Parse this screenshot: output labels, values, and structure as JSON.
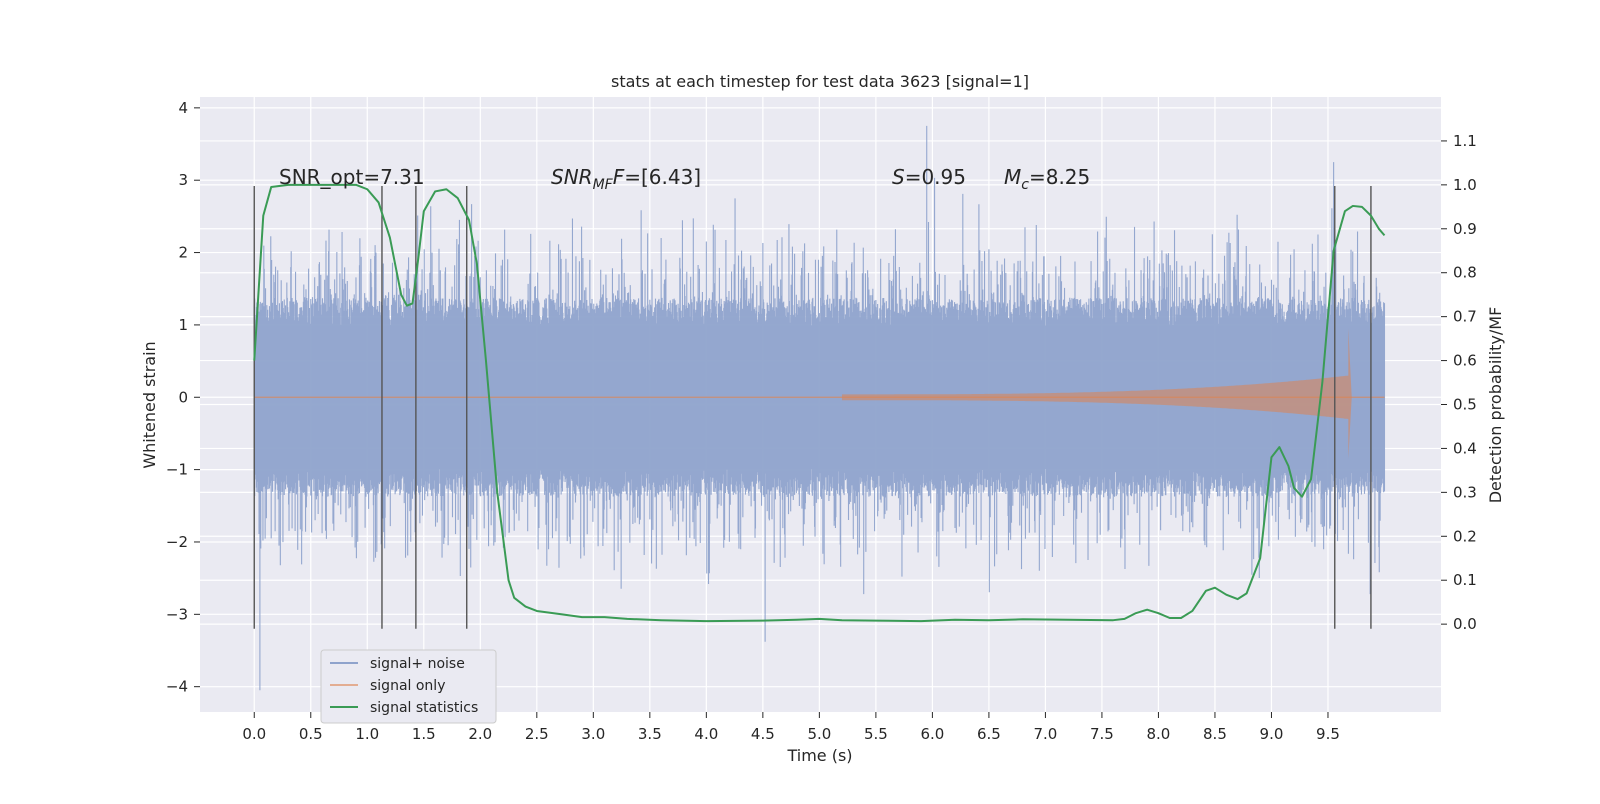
{
  "chart_data": {
    "type": "line",
    "title": "stats at each timestep for test data 3623 [signal=1]",
    "xlabel": "Time (s)",
    "ylabel_left": "Whitened strain",
    "ylabel_right": "Detection probability/MF",
    "xlim": [
      -0.48,
      10.5
    ],
    "ylim_left": [
      -4.35,
      4.15
    ],
    "ylim_right": [
      -0.2,
      1.2
    ],
    "grid": true,
    "legend_position": "lower-left",
    "x_ticks": [
      "0.0",
      "0.5",
      "1.0",
      "1.5",
      "2.0",
      "2.5",
      "3.0",
      "3.5",
      "4.0",
      "4.5",
      "5.0",
      "5.5",
      "6.0",
      "6.5",
      "7.0",
      "7.5",
      "8.0",
      "8.5",
      "9.0",
      "9.5"
    ],
    "y_left_ticks": [
      "4",
      "3",
      "2",
      "1",
      "0",
      "−1",
      "−2",
      "−3",
      "−4"
    ],
    "y_right_ticks": [
      "1.1",
      "1.0",
      "0.9",
      "0.8",
      "0.7",
      "0.6",
      "0.5",
      "0.4",
      "0.3",
      "0.2",
      "0.1",
      "0.0"
    ],
    "annotations": {
      "snr_opt": "SNR_opt=7.31",
      "snr_mf_main": "SNR",
      "snr_mf_sub": "MF",
      "snr_mf_val": "=[6.43]",
      "s_sym": "S",
      "s_val": "=0.95",
      "mc_main": "M",
      "mc_sub": "c",
      "mc_val": "=8.25"
    },
    "series": [
      {
        "name": "signal+ noise",
        "color": "#8fa3cc",
        "x_range": [
          0.0,
          10.0
        ],
        "noise_band": {
          "core_amplitude": 1.1,
          "spike_max": 3.75,
          "spike_min": -4.05
        },
        "extremes": [
          {
            "x": 0.05,
            "y": -4.05
          },
          {
            "x": 4.52,
            "y": -3.38
          },
          {
            "x": 5.95,
            "y": 3.75
          },
          {
            "x": 9.55,
            "y": 3.25
          }
        ]
      },
      {
        "name": "signal only",
        "color": "#dd8452",
        "x_range": [
          0.0,
          10.0
        ],
        "chirp": {
          "merger_time": 9.68,
          "start_time": 5.2,
          "peak_amplitude": 0.95,
          "pre_merger_amplitude": 0.3
        }
      },
      {
        "name": "signal statistics",
        "color": "#3a9b55",
        "axis": "right",
        "points": [
          [
            0.0,
            0.6
          ],
          [
            0.08,
            0.93
          ],
          [
            0.15,
            0.995
          ],
          [
            0.3,
            1.0
          ],
          [
            0.6,
            1.0
          ],
          [
            0.9,
            1.0
          ],
          [
            1.0,
            0.99
          ],
          [
            1.1,
            0.96
          ],
          [
            1.2,
            0.88
          ],
          [
            1.3,
            0.75
          ],
          [
            1.35,
            0.725
          ],
          [
            1.4,
            0.73
          ],
          [
            1.45,
            0.83
          ],
          [
            1.5,
            0.94
          ],
          [
            1.6,
            0.985
          ],
          [
            1.7,
            0.99
          ],
          [
            1.8,
            0.97
          ],
          [
            1.9,
            0.92
          ],
          [
            1.97,
            0.82
          ],
          [
            2.05,
            0.6
          ],
          [
            2.15,
            0.3
          ],
          [
            2.25,
            0.1
          ],
          [
            2.3,
            0.06
          ],
          [
            2.4,
            0.04
          ],
          [
            2.5,
            0.03
          ],
          [
            2.7,
            0.023
          ],
          [
            2.9,
            0.016
          ],
          [
            3.1,
            0.016
          ],
          [
            3.3,
            0.012
          ],
          [
            3.6,
            0.009
          ],
          [
            4.0,
            0.007
          ],
          [
            4.5,
            0.008
          ],
          [
            4.8,
            0.01
          ],
          [
            5.0,
            0.012
          ],
          [
            5.2,
            0.009
          ],
          [
            5.5,
            0.008
          ],
          [
            5.9,
            0.007
          ],
          [
            6.2,
            0.01
          ],
          [
            6.5,
            0.009
          ],
          [
            6.8,
            0.011
          ],
          [
            7.2,
            0.01
          ],
          [
            7.6,
            0.009
          ],
          [
            7.7,
            0.012
          ],
          [
            7.8,
            0.025
          ],
          [
            7.9,
            0.033
          ],
          [
            8.0,
            0.025
          ],
          [
            8.1,
            0.014
          ],
          [
            8.2,
            0.014
          ],
          [
            8.3,
            0.03
          ],
          [
            8.42,
            0.076
          ],
          [
            8.5,
            0.083
          ],
          [
            8.6,
            0.067
          ],
          [
            8.7,
            0.057
          ],
          [
            8.78,
            0.07
          ],
          [
            8.9,
            0.15
          ],
          [
            9.0,
            0.38
          ],
          [
            9.07,
            0.403
          ],
          [
            9.15,
            0.36
          ],
          [
            9.2,
            0.31
          ],
          [
            9.27,
            0.29
          ],
          [
            9.35,
            0.33
          ],
          [
            9.45,
            0.55
          ],
          [
            9.55,
            0.85
          ],
          [
            9.65,
            0.94
          ],
          [
            9.72,
            0.952
          ],
          [
            9.8,
            0.95
          ],
          [
            9.88,
            0.93
          ],
          [
            9.95,
            0.9
          ],
          [
            10.0,
            0.885
          ]
        ]
      }
    ],
    "vertical_markers": {
      "color": "#555555",
      "x": [
        0.0,
        1.13,
        1.43,
        1.88,
        9.56,
        9.88
      ],
      "y_bottom": -3.2,
      "y_top": 2.92
    }
  }
}
